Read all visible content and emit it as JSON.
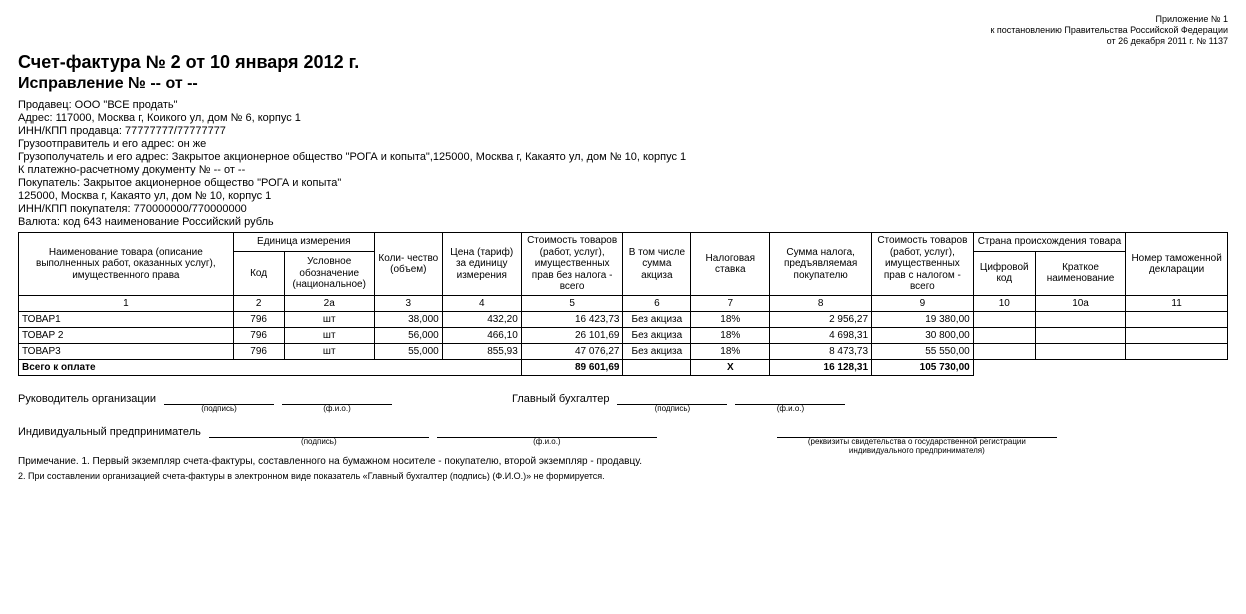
{
  "appendix": {
    "line1": "Приложение № 1",
    "line2": "к постановлению Правительства Российской Федерации",
    "line3": "от 26 декабря 2011 г. № 1137"
  },
  "title": "Счет-фактура № 2 от 10 января 2012 г.",
  "subtitle": "Исправление № -- от --",
  "info": {
    "seller": "Продавец: ООО \"ВСЕ продать\"",
    "address": "Адрес: 117000, Москва г, Коикого ул, дом № 6, корпус 1",
    "inn_seller": "ИНН/КПП продавца: 77777777/77777777",
    "shipper": "Грузоотправитель и его адрес: он же",
    "consignee": "Грузополучатель и его адрес: Закрытое акционерное общество \"РОГА и копыта\",125000, Москва г, Какаято ул, дом № 10, корпус 1",
    "paydoc": "К платежно-расчетному документу № -- от --",
    "buyer": "Покупатель: Закрытое акционерное общество \"РОГА и копыта\"",
    "buyer_addr": "125000, Москва г, Какаято ул, дом № 10, корпус 1",
    "inn_buyer": "ИНН/КПП покупателя: 770000000/770000000",
    "currency": "Валюта: код 643 наименование Российский рубль"
  },
  "columns": {
    "name": "Наименование товара (описание выполненных работ, оказанных услуг), имущественного права",
    "unit": "Единица измерения",
    "unit_code": "Код",
    "unit_name": "Условное обозначение (национальное)",
    "qty": "Коли-\nчество (объем)",
    "price": "Цена (тариф) за единицу измерения",
    "cost_no_tax": "Стоимость товаров (работ, услуг), имущественных прав без налога - всего",
    "excise": "В том числе сумма акциза",
    "tax_rate": "Налоговая ставка",
    "tax_sum": "Сумма налога, предъявляемая покупателю",
    "cost_with_tax": "Стоимость товаров (работ, услуг), имущественных прав с налогом - всего",
    "country": "Страна происхождения товара",
    "country_code": "Цифровой код",
    "country_name": "Краткое наименование",
    "customs": "Номер таможенной декларации"
  },
  "colnums": [
    "1",
    "2",
    "2а",
    "3",
    "4",
    "5",
    "6",
    "7",
    "8",
    "9",
    "10",
    "10а",
    "11"
  ],
  "rows": [
    {
      "name": "ТОВАР1",
      "code": "796",
      "uname": "шт",
      "qty": "38,000",
      "price": "432,20",
      "cost_no": "16 423,73",
      "excise": "Без акциза",
      "rate": "18%",
      "tax": "2 956,27",
      "cost_w": "19 380,00",
      "ccode": "",
      "cname": "",
      "customs": ""
    },
    {
      "name": "ТОВАР 2",
      "code": "796",
      "uname": "шт",
      "qty": "56,000",
      "price": "466,10",
      "cost_no": "26 101,69",
      "excise": "Без акциза",
      "rate": "18%",
      "tax": "4 698,31",
      "cost_w": "30 800,00",
      "ccode": "",
      "cname": "",
      "customs": ""
    },
    {
      "name": "ТОВАР3",
      "code": "796",
      "uname": "шт",
      "qty": "55,000",
      "price": "855,93",
      "cost_no": "47 076,27",
      "excise": "Без акциза",
      "rate": "18%",
      "tax": "8 473,73",
      "cost_w": "55 550,00",
      "ccode": "",
      "cname": "",
      "customs": ""
    }
  ],
  "total": {
    "label": "Всего к оплате",
    "cost_no": "89 601,69",
    "rate": "Х",
    "tax": "16 128,31",
    "cost_w": "105 730,00"
  },
  "sig": {
    "head": "Руководитель организации",
    "acc": "Главный бухгалтер",
    "ip": "Индивидуальный предприниматель",
    "podpis": "(подпись)",
    "fio": "(ф.и.о.)",
    "rekv": "(реквизиты свидетельства о государственной регистрации индивидуального предпринимателя)"
  },
  "note1": "Примечание. 1. Первый экземпляр счета-фактуры, составленного на бумажном носителе - покупателю, второй экземпляр - продавцу.",
  "note2": "2. При составлении организацией счета-фактуры в электронном виде показатель «Главный бухгалтер (подпись) (Ф.И.О.)» не формируется.",
  "col_widths_pct": [
    19,
    4.5,
    8,
    6,
    7,
    9,
    6,
    7,
    9,
    9,
    5.5,
    8,
    9
  ]
}
